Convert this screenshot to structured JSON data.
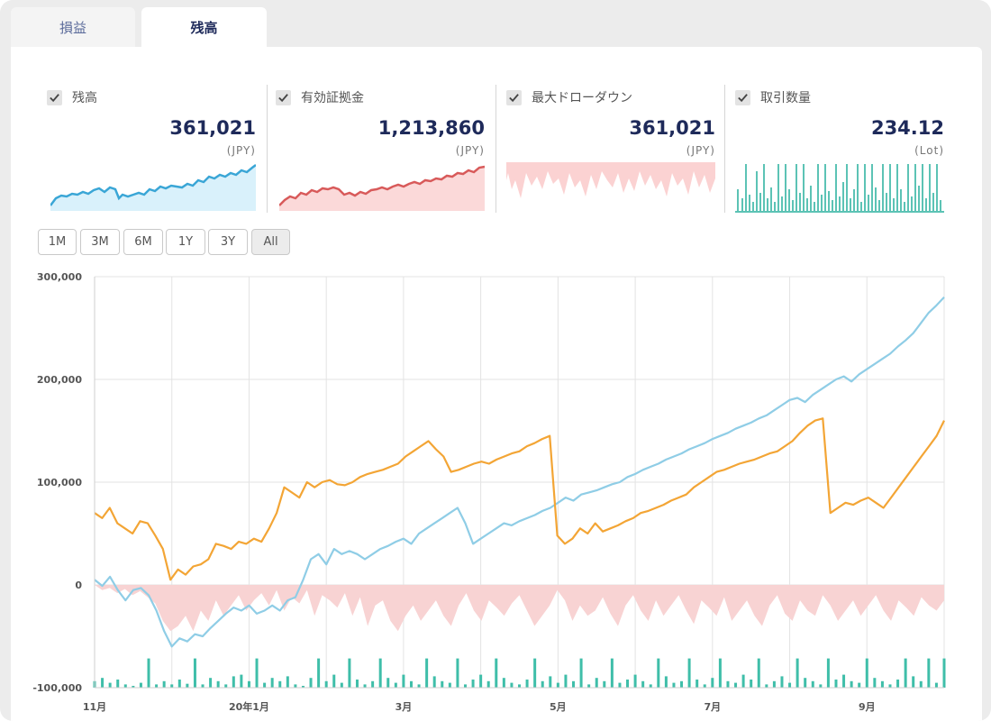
{
  "tabs": [
    {
      "label": "損益"
    },
    {
      "label": "残高"
    }
  ],
  "active_tab": "残高",
  "summary_cards": [
    {
      "label": "残高",
      "value": "361,021",
      "unit": "(JPY)",
      "checked": true,
      "color": "#3aa6d6",
      "fill": "#d9f1fb"
    },
    {
      "label": "有効証拠金",
      "value": "1,213,860",
      "unit": "(JPY)",
      "checked": true,
      "color": "#d85a5a",
      "fill": "#fbd9d9"
    },
    {
      "label": "最大ドローダウン",
      "value": "361,021",
      "unit": "(JPY)",
      "checked": true,
      "color": "#f6b8b8",
      "fill": "#fbd2d2"
    },
    {
      "label": "取引数量",
      "value": "234.12",
      "unit": "(Lot)",
      "checked": true,
      "color": "#5cc3b5",
      "fill": "#5cc3b5"
    }
  ],
  "range_buttons": [
    "1M",
    "3M",
    "6M",
    "1Y",
    "3Y",
    "All"
  ],
  "selected_range": "All",
  "chart_data": {
    "type": "line",
    "y_ticks": [
      "300,000",
      "200,000",
      "100,000",
      "0",
      "-100,000"
    ],
    "ylim": [
      -100000,
      300000
    ],
    "x_tick_labels": [
      "11月",
      "20年1月",
      "3月",
      "5月",
      "7月",
      "9月"
    ],
    "x_tick_positions": [
      0,
      20,
      40,
      60,
      80,
      100
    ],
    "x_range": [
      0,
      110
    ],
    "grid": true,
    "colors": {
      "balance": "#8fcde6",
      "equity": "#f3a535",
      "drawdown": "#f8d3d3",
      "volume": "#3fbea9"
    },
    "series": [
      {
        "key": "balance",
        "values": [
          5000,
          -1000,
          8000,
          -5000,
          -15000,
          -5000,
          -3000,
          -10000,
          -25000,
          -45000,
          -60000,
          -52000,
          -55000,
          -48000,
          -50000,
          -42000,
          -35000,
          -28000,
          -22000,
          -25000,
          -20000,
          -28000,
          -25000,
          -20000,
          -25000,
          -15000,
          -12000,
          5000,
          25000,
          30000,
          20000,
          35000,
          30000,
          33000,
          30000,
          25000,
          30000,
          35000,
          38000,
          42000,
          45000,
          40000,
          50000,
          55000,
          60000,
          65000,
          70000,
          75000,
          60000,
          40000,
          45000,
          50000,
          55000,
          60000,
          58000,
          62000,
          65000,
          68000,
          72000,
          75000,
          80000,
          85000,
          82000,
          88000,
          90000,
          92000,
          95000,
          98000,
          100000,
          105000,
          108000,
          112000,
          115000,
          118000,
          122000,
          125000,
          128000,
          132000,
          135000,
          138000,
          142000,
          145000,
          148000,
          152000,
          155000,
          158000,
          162000,
          165000,
          170000,
          175000,
          180000,
          182000,
          178000,
          185000,
          190000,
          195000,
          200000,
          203000,
          198000,
          205000,
          210000,
          215000,
          220000,
          225000,
          232000,
          238000,
          245000,
          255000,
          265000,
          272000,
          280000
        ]
      },
      {
        "key": "equity",
        "values": [
          70000,
          65000,
          75000,
          60000,
          55000,
          50000,
          62000,
          60000,
          48000,
          35000,
          5000,
          15000,
          10000,
          18000,
          20000,
          25000,
          40000,
          38000,
          35000,
          42000,
          40000,
          45000,
          42000,
          55000,
          70000,
          95000,
          90000,
          85000,
          100000,
          95000,
          100000,
          102000,
          98000,
          97000,
          100000,
          105000,
          108000,
          110000,
          112000,
          115000,
          118000,
          125000,
          130000,
          135000,
          140000,
          132000,
          125000,
          110000,
          112000,
          115000,
          118000,
          120000,
          118000,
          122000,
          125000,
          128000,
          130000,
          135000,
          138000,
          142000,
          145000,
          48000,
          40000,
          45000,
          55000,
          50000,
          60000,
          52000,
          55000,
          58000,
          62000,
          65000,
          70000,
          72000,
          75000,
          78000,
          82000,
          85000,
          88000,
          95000,
          100000,
          105000,
          110000,
          112000,
          115000,
          118000,
          120000,
          122000,
          125000,
          128000,
          130000,
          135000,
          140000,
          148000,
          155000,
          160000,
          162000,
          70000,
          75000,
          80000,
          78000,
          82000,
          85000,
          80000,
          75000,
          85000,
          95000,
          105000,
          115000,
          125000,
          135000,
          145000,
          160000
        ]
      },
      {
        "key": "drawdown",
        "values": [
          0,
          -5000,
          -3000,
          -8000,
          -4000,
          -10000,
          -6000,
          -12000,
          -18000,
          -35000,
          -45000,
          -40000,
          -30000,
          -45000,
          -25000,
          -35000,
          -15000,
          -30000,
          -20000,
          -10000,
          -25000,
          -15000,
          -8000,
          -20000,
          -5000,
          -25000,
          -12000,
          -18000,
          -5000,
          -30000,
          -10000,
          -15000,
          -22000,
          -8000,
          -30000,
          -12000,
          -40000,
          -20000,
          -15000,
          -35000,
          -45000,
          -30000,
          -20000,
          -35000,
          -25000,
          -15000,
          -30000,
          -40000,
          -20000,
          -8000,
          -25000,
          -35000,
          -15000,
          -22000,
          -30000,
          -18000,
          -10000,
          -25000,
          -40000,
          -30000,
          -20000,
          -5000,
          -15000,
          -35000,
          -20000,
          -30000,
          -25000,
          -12000,
          -28000,
          -40000,
          -20000,
          -10000,
          -25000,
          -35000,
          -15000,
          -30000,
          -20000,
          -10000,
          -25000,
          -38000,
          -15000,
          -22000,
          -30000,
          -12000,
          -35000,
          -25000,
          -15000,
          -30000,
          -40000,
          -20000,
          -10000,
          -28000,
          -35000,
          -15000,
          -25000,
          -30000,
          -10000,
          -20000,
          -35000,
          -25000,
          -15000,
          -30000,
          -20000,
          -10000,
          -25000,
          -35000,
          -15000,
          -22000,
          -30000,
          -12000,
          -20000,
          -25000,
          -15000
        ]
      },
      {
        "key": "volume",
        "values": [
          0.2,
          0.3,
          0.15,
          0.25,
          0.1,
          0.05,
          0.15,
          0.9,
          0.1,
          0.2,
          0.1,
          0.25,
          0.12,
          0.9,
          0.1,
          0.3,
          0.2,
          0.1,
          0.35,
          0.4,
          0.2,
          0.9,
          0.15,
          0.3,
          0.2,
          0.35,
          0.1,
          0.05,
          0.3,
          0.9,
          0.2,
          0.4,
          0.15,
          0.9,
          0.25,
          0.1,
          0.2,
          0.9,
          0.3,
          0.15,
          0.4,
          0.2,
          0.1,
          0.9,
          0.35,
          0.2,
          0.15,
          0.9,
          0.1,
          0.25,
          0.4,
          0.2,
          0.9,
          0.3,
          0.15,
          0.1,
          0.25,
          0.9,
          0.2,
          0.35,
          0.15,
          0.4,
          0.2,
          0.9,
          0.1,
          0.3,
          0.2,
          0.9,
          0.15,
          0.25,
          0.4,
          0.2,
          0.1,
          0.9,
          0.35,
          0.15,
          0.2,
          0.9,
          0.25,
          0.1,
          0.3,
          0.9,
          0.2,
          0.15,
          0.4,
          0.25,
          0.9,
          0.1,
          0.2,
          0.35,
          0.15,
          0.9,
          0.3,
          0.2,
          0.1,
          0.9,
          0.25,
          0.4,
          0.2,
          0.15,
          0.9,
          0.3,
          0.2,
          0.1,
          0.25,
          0.9,
          0.35,
          0.2,
          0.9,
          0.15,
          0.9
        ]
      }
    ]
  }
}
